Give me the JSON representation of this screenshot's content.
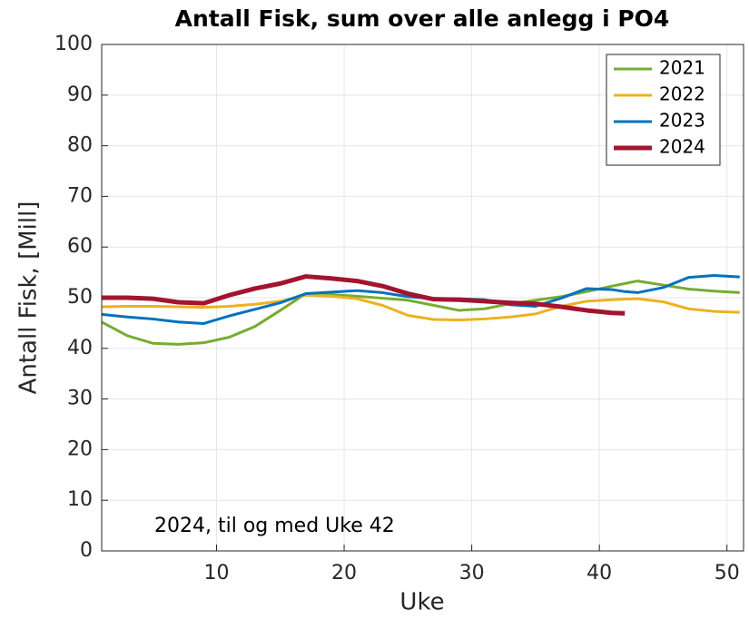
{
  "chart_data": {
    "type": "line",
    "title": "Antall Fisk, sum over alle anlegg i PO4",
    "x_label": "Uke",
    "y_label": "Antall Fisk, [Mill]",
    "annotation": "2024, til og med Uke 42",
    "x": [
      1,
      3,
      5,
      7,
      9,
      11,
      13,
      15,
      17,
      19,
      21,
      23,
      25,
      27,
      29,
      31,
      33,
      35,
      37,
      39,
      41,
      42,
      43,
      45,
      47,
      49,
      51
    ],
    "series": [
      {
        "name": "2021",
        "color": "#77ac30",
        "values": [
          45.2,
          42.5,
          41,
          40.8,
          41.1,
          42.2,
          44.3,
          47.5,
          50.8,
          50.6,
          50.3,
          49.9,
          49.5,
          48.5,
          47.5,
          47.8,
          48.8,
          49.5,
          50.2,
          51.2,
          52.3,
          52.8,
          53.3,
          52.5,
          51.7,
          51.3,
          51
        ]
      },
      {
        "name": "2022",
        "color": "#edb120",
        "values": [
          48.2,
          48.3,
          48.3,
          48.2,
          48.1,
          48.3,
          48.7,
          49.3,
          50.5,
          50.3,
          49.8,
          48.5,
          46.5,
          45.7,
          45.6,
          45.8,
          46.2,
          46.8,
          48.3,
          49.3,
          49.6,
          49.7,
          49.8,
          49.2,
          47.8,
          47.3,
          47.1
        ]
      },
      {
        "name": "2023",
        "color": "#0072bd",
        "values": [
          46.7,
          46.2,
          45.8,
          45.2,
          44.9,
          46.4,
          47.7,
          49,
          50.8,
          51.1,
          51.4,
          51,
          50.2,
          49.8,
          49.8,
          49.6,
          48.6,
          48.3,
          49.9,
          51.8,
          51.6,
          51.2,
          51,
          52,
          54,
          54.4,
          54.1
        ]
      },
      {
        "name": "2024",
        "color": "#a2142f",
        "values": [
          50,
          50,
          49.8,
          49.1,
          48.9,
          50.5,
          51.8,
          52.8,
          54.2,
          53.8,
          53.3,
          52.3,
          50.8,
          49.7,
          49.6,
          49.3,
          49,
          48.8,
          48.2,
          47.5,
          47,
          46.9,
          null,
          null,
          null,
          null,
          null
        ]
      }
    ],
    "xlim": [
      1,
      51.3
    ],
    "xticks": [
      10,
      20,
      30,
      40,
      50
    ],
    "ylim": [
      0,
      100
    ],
    "yticks": [
      0,
      10,
      20,
      30,
      40,
      50,
      60,
      70,
      80,
      90,
      100
    ],
    "grid": true,
    "legend": "top-right"
  }
}
